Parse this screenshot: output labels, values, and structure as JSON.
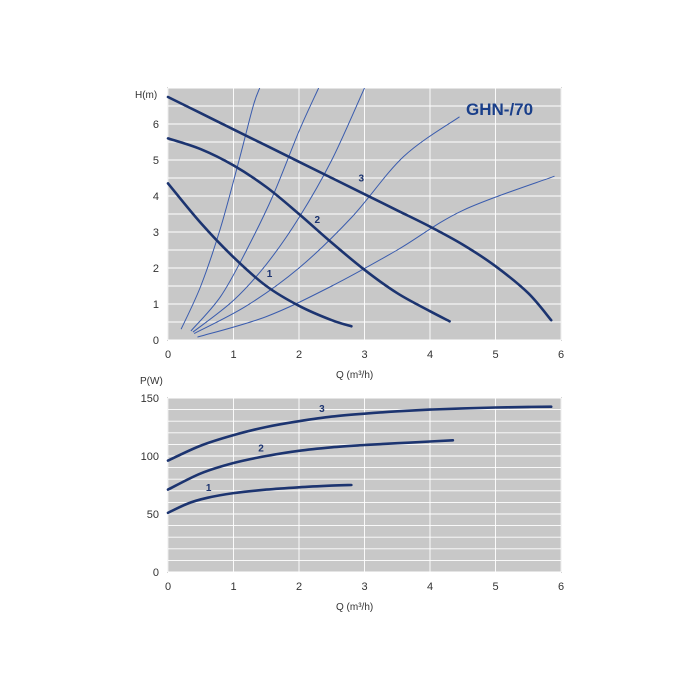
{
  "chart_data": [
    {
      "type": "line",
      "title": "GHN-/70",
      "ylabel": "H(m)",
      "xlabel": "Q (m³/h)",
      "xlim": [
        0,
        6
      ],
      "ylim": [
        0,
        7
      ],
      "xticks": [
        "0",
        "1",
        "2",
        "3",
        "4",
        "5",
        "6"
      ],
      "yticks": [
        "0",
        "1",
        "2",
        "3",
        "4",
        "5",
        "6"
      ],
      "grid": true,
      "colors": {
        "plot_bg": "#c8c8c8",
        "curve": "#1c3470",
        "system_curve": "#3a5cae",
        "title": "#1a3f8a"
      },
      "series": [
        {
          "name": "1",
          "x": [
            0,
            0.5,
            1.0,
            1.5,
            2.0,
            2.5,
            2.8
          ],
          "y": [
            4.35,
            3.25,
            2.3,
            1.5,
            0.95,
            0.55,
            0.38
          ]
        },
        {
          "name": "2",
          "x": [
            0,
            0.5,
            1.0,
            1.5,
            2.0,
            2.5,
            3.0,
            3.5,
            4.0,
            4.3
          ],
          "y": [
            5.6,
            5.3,
            4.85,
            4.25,
            3.5,
            2.7,
            1.95,
            1.3,
            0.8,
            0.52
          ]
        },
        {
          "name": "3",
          "x": [
            0,
            0.5,
            1.0,
            1.5,
            2.0,
            2.5,
            3.0,
            3.5,
            4.0,
            4.5,
            5.0,
            5.5,
            5.85
          ],
          "y": [
            6.75,
            6.3,
            5.85,
            5.4,
            4.95,
            4.5,
            4.05,
            3.6,
            3.15,
            2.65,
            2.05,
            1.3,
            0.55
          ]
        }
      ],
      "system_curves": [
        {
          "x": [
            0.2,
            0.5,
            0.8,
            1.1,
            1.3,
            1.4
          ],
          "y": [
            0.3,
            1.5,
            3.1,
            5.1,
            6.5,
            7.0
          ]
        },
        {
          "x": [
            0.35,
            0.8,
            1.2,
            1.6,
            2.0,
            2.3
          ],
          "y": [
            0.25,
            1.2,
            2.5,
            4.0,
            5.8,
            7.0
          ]
        },
        {
          "x": [
            0.38,
            1.0,
            1.5,
            2.0,
            2.5,
            3.0
          ],
          "y": [
            0.22,
            1.1,
            2.1,
            3.4,
            5.0,
            7.0
          ]
        },
        {
          "x": [
            0.4,
            1.2,
            2.0,
            2.8,
            3.6,
            4.45
          ],
          "y": [
            0.18,
            0.95,
            2.0,
            3.4,
            5.1,
            6.2
          ]
        },
        {
          "x": [
            0.45,
            1.5,
            2.5,
            3.5,
            4.5,
            5.9
          ],
          "y": [
            0.08,
            0.65,
            1.5,
            2.5,
            3.6,
            4.55
          ]
        }
      ],
      "curve_labels": [
        {
          "text": "1",
          "x": 1.55,
          "y": 1.75
        },
        {
          "text": "2",
          "x": 2.28,
          "y": 3.25
        },
        {
          "text": "3",
          "x": 2.95,
          "y": 4.4
        }
      ]
    },
    {
      "type": "line",
      "ylabel": "P(W)",
      "xlabel": "Q (m³/h)",
      "xlim": [
        0,
        6
      ],
      "ylim": [
        0,
        150
      ],
      "xticks": [
        "0",
        "1",
        "2",
        "3",
        "4",
        "5",
        "6"
      ],
      "yticks": [
        "0",
        "50",
        "100",
        "150"
      ],
      "grid": true,
      "colors": {
        "plot_bg": "#c8c8c8",
        "curve": "#1c3470"
      },
      "series": [
        {
          "name": "1",
          "x": [
            0,
            0.3,
            0.6,
            1.0,
            1.5,
            2.0,
            2.5,
            2.8
          ],
          "y": [
            51,
            59,
            64,
            68,
            71,
            73,
            74.5,
            75
          ]
        },
        {
          "name": "2",
          "x": [
            0,
            0.5,
            1.0,
            1.5,
            2.0,
            2.5,
            3.0,
            3.5,
            4.0,
            4.35
          ],
          "y": [
            71,
            85,
            94,
            100,
            104.5,
            107.5,
            109.5,
            111,
            112.5,
            113.5
          ]
        },
        {
          "name": "3",
          "x": [
            0,
            0.5,
            1.0,
            1.5,
            2.0,
            2.5,
            3.0,
            3.5,
            4.0,
            4.5,
            5.0,
            5.5,
            5.85
          ],
          "y": [
            96,
            109,
            118,
            125,
            130,
            134,
            136.5,
            138.5,
            140,
            141,
            141.8,
            142.3,
            142.5
          ]
        }
      ],
      "curve_labels": [
        {
          "text": "1",
          "x": 0.62,
          "y": 70
        },
        {
          "text": "2",
          "x": 1.42,
          "y": 104
        },
        {
          "text": "3",
          "x": 2.35,
          "y": 138
        }
      ]
    }
  ]
}
